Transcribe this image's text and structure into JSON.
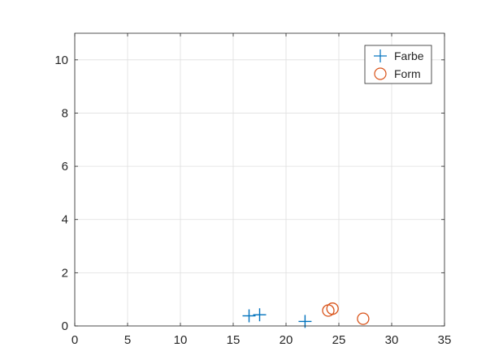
{
  "chart_data": {
    "type": "scatter",
    "title": "",
    "xlabel": "",
    "ylabel": "",
    "xlim": [
      0,
      35
    ],
    "ylim": [
      0,
      11
    ],
    "xticks": [
      "0",
      "5",
      "10",
      "15",
      "20",
      "25",
      "30",
      "35"
    ],
    "yticks": [
      "0",
      "2",
      "4",
      "6",
      "8",
      "10"
    ],
    "grid": true,
    "legend_position": "top-right",
    "series": [
      {
        "name": "Farbe",
        "marker": "plus",
        "color": "#0072BD",
        "x": [
          16.5,
          17.5,
          21.8
        ],
        "y": [
          0.38,
          0.42,
          0.17
        ]
      },
      {
        "name": "Form",
        "marker": "circle",
        "color": "#D95319",
        "x": [
          24.0,
          24.4,
          27.3
        ],
        "y": [
          0.58,
          0.65,
          0.27
        ]
      }
    ]
  }
}
